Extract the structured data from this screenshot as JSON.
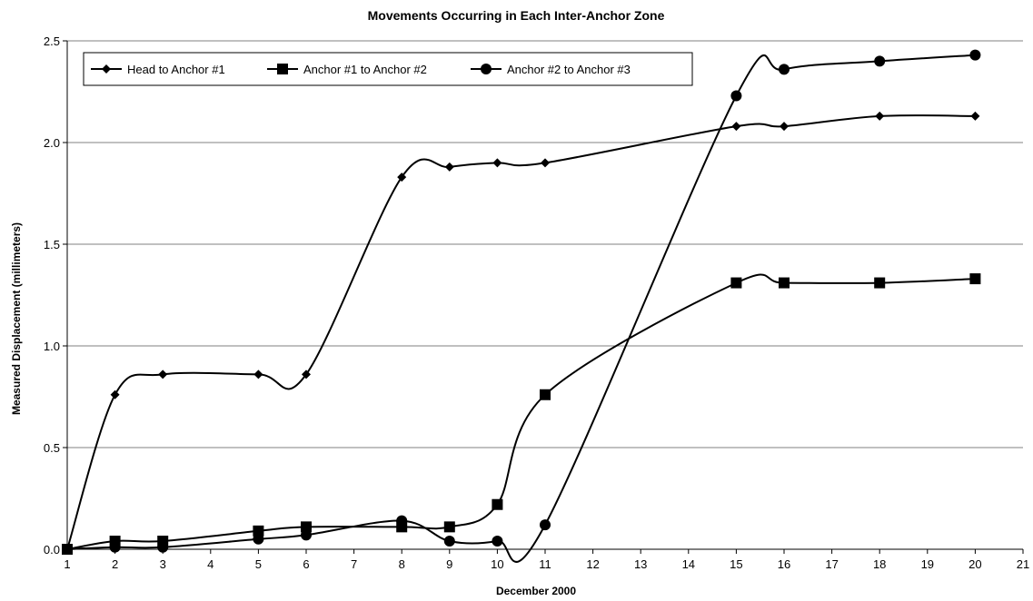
{
  "chart_data": {
    "type": "line",
    "title": "Movements Occurring in Each Inter-Anchor Zone",
    "xlabel": "December 2000",
    "ylabel": "Measured Displacement (millimeters)",
    "xlim": [
      1,
      21
    ],
    "ylim": [
      0,
      2.5
    ],
    "x_ticks": [
      1,
      2,
      3,
      4,
      5,
      6,
      7,
      8,
      9,
      10,
      11,
      12,
      13,
      14,
      15,
      16,
      17,
      18,
      19,
      20,
      21
    ],
    "y_ticks": [
      0,
      0.5,
      1.0,
      1.5,
      2.0,
      2.5
    ],
    "y_tick_labels": [
      "0.0",
      "0.5",
      "1.0",
      "1.5",
      "2.0",
      "2.5"
    ],
    "grid": "horizontal",
    "legend_position": "top-left",
    "series": [
      {
        "name": "Head to Anchor #1",
        "marker": "diamond",
        "x": [
          1,
          2,
          3,
          5,
          6,
          8,
          9,
          10,
          11,
          15,
          16,
          18,
          20
        ],
        "y": [
          0,
          0.76,
          0.86,
          0.86,
          0.86,
          1.83,
          1.88,
          1.9,
          1.9,
          2.08,
          2.08,
          2.13,
          2.13
        ]
      },
      {
        "name": "Anchor #1 to Anchor #2",
        "marker": "square",
        "x": [
          1,
          2,
          3,
          5,
          6,
          8,
          9,
          10,
          11,
          15,
          16,
          18,
          20
        ],
        "y": [
          0,
          0.04,
          0.04,
          0.09,
          0.11,
          0.11,
          0.11,
          0.22,
          0.76,
          1.31,
          1.31,
          1.31,
          1.33
        ]
      },
      {
        "name": "Anchor #2 to Anchor #3",
        "marker": "circle",
        "x": [
          1,
          2,
          3,
          5,
          6,
          8,
          9,
          10,
          11,
          15,
          16,
          18,
          20
        ],
        "y": [
          0,
          0.01,
          0.01,
          0.05,
          0.07,
          0.14,
          0.04,
          0.04,
          0.12,
          2.23,
          2.36,
          2.4,
          2.43
        ]
      }
    ],
    "colors": {
      "line": "#000000",
      "grid": "#808080",
      "background": "#ffffff"
    }
  }
}
